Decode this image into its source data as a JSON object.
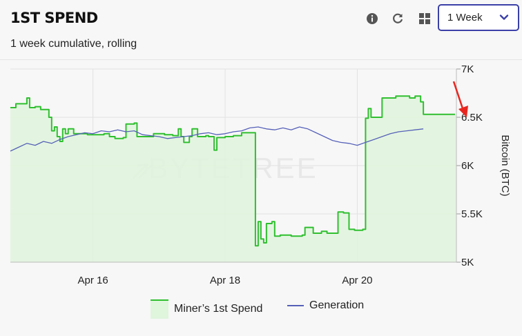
{
  "header": {
    "title": "1ST SPEND",
    "subtitle": "1 week cumulative, rolling",
    "icons": [
      "info-icon",
      "refresh-icon",
      "grid-icon"
    ],
    "period_select": {
      "value": "1 Week"
    }
  },
  "watermark": "BYTETREE",
  "colors": {
    "spend_line": "#2fbf2f",
    "spend_fill": "#dff5dc",
    "generation_line": "#5560b8",
    "accent": "#3a3fa8",
    "annotation_arrow": "#e8261f"
  },
  "chart_data": {
    "type": "line",
    "title": "",
    "xlabel": "",
    "ylabel": "Bitcoin (BTC)",
    "x_ticks": [
      "Apr 16",
      "Apr 18",
      "Apr 20"
    ],
    "y_ticks": [
      "5K",
      "5.5K",
      "6K",
      "6.5K",
      "7K"
    ],
    "ylim": [
      5000,
      7000
    ],
    "xlim": [
      "Apr 14 18:00",
      "Apr 21 12:00"
    ],
    "grid": true,
    "legend_position": "bottom",
    "series": [
      {
        "name": "Miner’s 1st Spend",
        "style": "line-with-area",
        "points": [
          [
            "Apr 14 18:00",
            6600
          ],
          [
            "Apr 14 20:00",
            6640
          ],
          [
            "Apr 14 22:00",
            6640
          ],
          [
            "Apr 15 00:00",
            6700
          ],
          [
            "Apr 15 01:00",
            6600
          ],
          [
            "Apr 15 03:00",
            6610
          ],
          [
            "Apr 15 05:00",
            6580
          ],
          [
            "Apr 15 07:00",
            6580
          ],
          [
            "Apr 15 08:00",
            6500
          ],
          [
            "Apr 15 09:00",
            6360
          ],
          [
            "Apr 15 10:00",
            6400
          ],
          [
            "Apr 15 11:00",
            6300
          ],
          [
            "Apr 15 12:00",
            6250
          ],
          [
            "Apr 15 13:00",
            6380
          ],
          [
            "Apr 15 14:00",
            6330
          ],
          [
            "Apr 15 15:00",
            6380
          ],
          [
            "Apr 15 17:00",
            6330
          ],
          [
            "Apr 15 19:00",
            6330
          ],
          [
            "Apr 15 22:00",
            6320
          ],
          [
            "Apr 16 04:00",
            6330
          ],
          [
            "Apr 16 06:00",
            6300
          ],
          [
            "Apr 16 08:00",
            6280
          ],
          [
            "Apr 16 11:00",
            6290
          ],
          [
            "Apr 16 12:00",
            6430
          ],
          [
            "Apr 16 15:00",
            6440
          ],
          [
            "Apr 16 16:00",
            6300
          ],
          [
            "Apr 16 22:00",
            6330
          ],
          [
            "Apr 17 02:00",
            6320
          ],
          [
            "Apr 17 05:00",
            6310
          ],
          [
            "Apr 17 07:00",
            6380
          ],
          [
            "Apr 17 08:00",
            6300
          ],
          [
            "Apr 17 09:00",
            6240
          ],
          [
            "Apr 17 11:00",
            6300
          ],
          [
            "Apr 17 12:00",
            6380
          ],
          [
            "Apr 17 14:00",
            6300
          ],
          [
            "Apr 17 17:00",
            6310
          ],
          [
            "Apr 17 18:00",
            6300
          ],
          [
            "Apr 17 19:00",
            6300
          ],
          [
            "Apr 17 20:00",
            6160
          ],
          [
            "Apr 17 21:00",
            6290
          ],
          [
            "Apr 18 00:00",
            6300
          ],
          [
            "Apr 18 03:00",
            6310
          ],
          [
            "Apr 18 06:00",
            6340
          ],
          [
            "Apr 18 09:00",
            6340
          ],
          [
            "Apr 18 10:00",
            6340
          ],
          [
            "Apr 18 11:00",
            5170
          ],
          [
            "Apr 18 12:00",
            5420
          ],
          [
            "Apr 18 13:00",
            5240
          ],
          [
            "Apr 18 14:00",
            5200
          ],
          [
            "Apr 18 15:00",
            5400
          ],
          [
            "Apr 18 17:00",
            5420
          ],
          [
            "Apr 18 18:00",
            5270
          ],
          [
            "Apr 18 20:00",
            5280
          ],
          [
            "Apr 19 00:00",
            5270
          ],
          [
            "Apr 19 04:00",
            5280
          ],
          [
            "Apr 19 05:00",
            5360
          ],
          [
            "Apr 19 08:00",
            5300
          ],
          [
            "Apr 19 11:00",
            5320
          ],
          [
            "Apr 19 13:00",
            5300
          ],
          [
            "Apr 19 15:00",
            5300
          ],
          [
            "Apr 19 17:00",
            5520
          ],
          [
            "Apr 19 19:00",
            5510
          ],
          [
            "Apr 19 21:00",
            5340
          ],
          [
            "Apr 19 23:00",
            5330
          ],
          [
            "Apr 20 02:00",
            5340
          ],
          [
            "Apr 20 03:00",
            6490
          ],
          [
            "Apr 20 04:00",
            6590
          ],
          [
            "Apr 20 05:00",
            6500
          ],
          [
            "Apr 20 08:00",
            6500
          ],
          [
            "Apr 20 09:00",
            6700
          ],
          [
            "Apr 20 14:00",
            6720
          ],
          [
            "Apr 20 19:00",
            6700
          ],
          [
            "Apr 20 21:00",
            6720
          ],
          [
            "Apr 20 23:00",
            6660
          ],
          [
            "Apr 21 00:00",
            6530
          ]
        ]
      },
      {
        "name": "Generation",
        "style": "line",
        "points": [
          [
            "Apr 14 18:00",
            6150
          ],
          [
            "Apr 14 21:00",
            6190
          ],
          [
            "Apr 15 00:00",
            6230
          ],
          [
            "Apr 15 03:00",
            6210
          ],
          [
            "Apr 15 06:00",
            6250
          ],
          [
            "Apr 15 09:00",
            6230
          ],
          [
            "Apr 15 12:00",
            6270
          ],
          [
            "Apr 15 15:00",
            6300
          ],
          [
            "Apr 15 18:00",
            6320
          ],
          [
            "Apr 15 21:00",
            6340
          ],
          [
            "Apr 16 00:00",
            6330
          ],
          [
            "Apr 16 03:00",
            6360
          ],
          [
            "Apr 16 06:00",
            6350
          ],
          [
            "Apr 16 09:00",
            6370
          ],
          [
            "Apr 16 12:00",
            6350
          ],
          [
            "Apr 16 15:00",
            6360
          ],
          [
            "Apr 16 18:00",
            6320
          ],
          [
            "Apr 16 21:00",
            6310
          ],
          [
            "Apr 17 00:00",
            6300
          ],
          [
            "Apr 17 03:00",
            6280
          ],
          [
            "Apr 17 06:00",
            6290
          ],
          [
            "Apr 17 09:00",
            6300
          ],
          [
            "Apr 17 12:00",
            6310
          ],
          [
            "Apr 17 15:00",
            6330
          ],
          [
            "Apr 17 18:00",
            6340
          ],
          [
            "Apr 17 21:00",
            6320
          ],
          [
            "Apr 18 00:00",
            6330
          ],
          [
            "Apr 18 03:00",
            6350
          ],
          [
            "Apr 18 06:00",
            6360
          ],
          [
            "Apr 18 09:00",
            6390
          ],
          [
            "Apr 18 12:00",
            6400
          ],
          [
            "Apr 18 15:00",
            6380
          ],
          [
            "Apr 18 18:00",
            6370
          ],
          [
            "Apr 18 21:00",
            6390
          ],
          [
            "Apr 19 00:00",
            6370
          ],
          [
            "Apr 19 03:00",
            6400
          ],
          [
            "Apr 19 06:00",
            6380
          ],
          [
            "Apr 19 09:00",
            6340
          ],
          [
            "Apr 19 12:00",
            6300
          ],
          [
            "Apr 19 15:00",
            6260
          ],
          [
            "Apr 19 18:00",
            6240
          ],
          [
            "Apr 19 21:00",
            6230
          ],
          [
            "Apr 20 00:00",
            6210
          ],
          [
            "Apr 20 03:00",
            6240
          ],
          [
            "Apr 20 06:00",
            6270
          ],
          [
            "Apr 20 09:00",
            6300
          ],
          [
            "Apr 20 12:00",
            6330
          ],
          [
            "Apr 20 15:00",
            6350
          ],
          [
            "Apr 20 18:00",
            6360
          ],
          [
            "Apr 20 21:00",
            6370
          ],
          [
            "Apr 21 00:00",
            6380
          ]
        ]
      }
    ]
  }
}
